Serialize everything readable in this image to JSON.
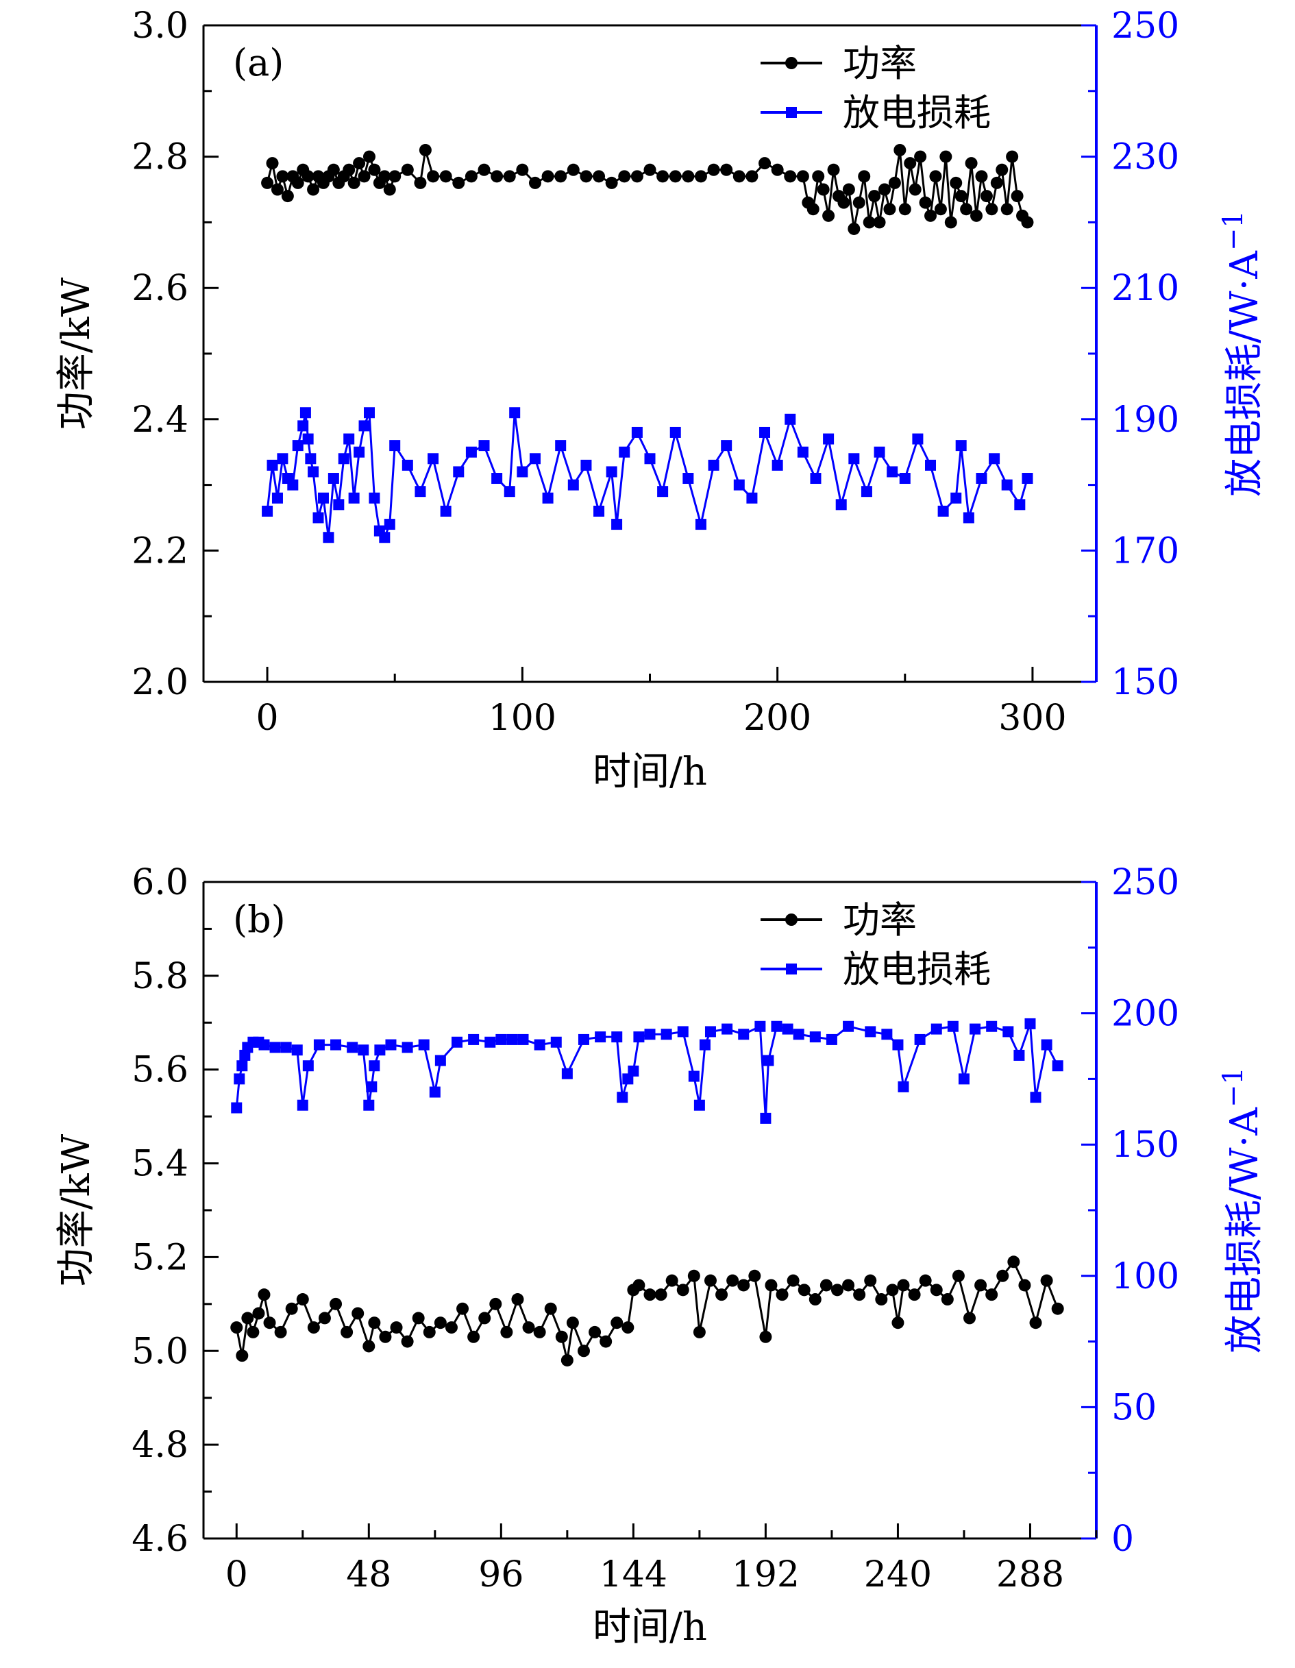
{
  "colors": {
    "power": "#000000",
    "discharge": "#0000ff",
    "axis": "#000000"
  },
  "chart_data": [
    {
      "type": "scatter",
      "panel_label": "(a)",
      "xlabel": "时间/h",
      "ylabel_left": "功率/kW",
      "ylabel_right": "放电损耗/W·A",
      "ylabel_right_sup": "−1",
      "xlim": [
        -25,
        325
      ],
      "ylim_left": [
        2.0,
        3.0
      ],
      "ylim_right": [
        150,
        250
      ],
      "xticks": [
        0,
        100,
        200,
        300
      ],
      "xtick_labels": [
        "0",
        "100",
        "200",
        "300"
      ],
      "yticks_left": [
        2.0,
        2.2,
        2.4,
        2.6,
        2.8,
        3.0
      ],
      "ytick_labels_left": [
        "2.0",
        "2.2",
        "2.4",
        "2.6",
        "2.8",
        "3.0"
      ],
      "yticks_right": [
        150,
        170,
        190,
        210,
        230,
        250
      ],
      "ytick_labels_right": [
        "150",
        "170",
        "190",
        "210",
        "230",
        "250"
      ],
      "legend": {
        "position": "top-right",
        "entries": [
          "功率",
          "放电损耗"
        ]
      },
      "series": [
        {
          "name": "功率",
          "axis": "left",
          "marker": "circle",
          "x": [
            0,
            2,
            4,
            6,
            8,
            10,
            12,
            14,
            16,
            18,
            20,
            22,
            24,
            26,
            28,
            30,
            32,
            34,
            36,
            38,
            40,
            42,
            44,
            46,
            48,
            50,
            55,
            60,
            62,
            65,
            70,
            75,
            80,
            85,
            90,
            95,
            100,
            105,
            110,
            115,
            120,
            125,
            130,
            135,
            140,
            145,
            150,
            155,
            160,
            165,
            170,
            175,
            180,
            185,
            190,
            195,
            200,
            205,
            210,
            212,
            214,
            216,
            218,
            220,
            222,
            224,
            226,
            228,
            230,
            232,
            234,
            236,
            238,
            240,
            242,
            244,
            246,
            248,
            250,
            252,
            254,
            256,
            258,
            260,
            262,
            264,
            266,
            268,
            270,
            272,
            274,
            276,
            278,
            280,
            282,
            284,
            286,
            288,
            290,
            292,
            294,
            296,
            298
          ],
          "y": [
            2.76,
            2.79,
            2.75,
            2.77,
            2.74,
            2.77,
            2.76,
            2.78,
            2.77,
            2.75,
            2.77,
            2.76,
            2.77,
            2.78,
            2.76,
            2.77,
            2.78,
            2.76,
            2.79,
            2.77,
            2.8,
            2.78,
            2.76,
            2.77,
            2.75,
            2.77,
            2.78,
            2.76,
            2.81,
            2.77,
            2.77,
            2.76,
            2.77,
            2.78,
            2.77,
            2.77,
            2.78,
            2.76,
            2.77,
            2.77,
            2.78,
            2.77,
            2.77,
            2.76,
            2.77,
            2.77,
            2.78,
            2.77,
            2.77,
            2.77,
            2.77,
            2.78,
            2.78,
            2.77,
            2.77,
            2.79,
            2.78,
            2.77,
            2.77,
            2.73,
            2.72,
            2.77,
            2.75,
            2.71,
            2.78,
            2.74,
            2.73,
            2.75,
            2.69,
            2.73,
            2.77,
            2.7,
            2.74,
            2.7,
            2.75,
            2.72,
            2.76,
            2.81,
            2.72,
            2.79,
            2.75,
            2.8,
            2.73,
            2.71,
            2.77,
            2.72,
            2.8,
            2.7,
            2.76,
            2.74,
            2.72,
            2.79,
            2.71,
            2.77,
            2.74,
            2.72,
            2.76,
            2.78,
            2.72,
            2.8,
            2.74,
            2.71,
            2.7
          ]
        },
        {
          "name": "放电损耗",
          "axis": "right",
          "marker": "square",
          "x": [
            0,
            2,
            4,
            6,
            8,
            10,
            12,
            14,
            15,
            16,
            17,
            18,
            20,
            22,
            24,
            26,
            28,
            30,
            32,
            34,
            36,
            38,
            40,
            42,
            44,
            46,
            48,
            50,
            55,
            60,
            65,
            70,
            75,
            80,
            85,
            90,
            95,
            97,
            100,
            105,
            110,
            115,
            120,
            125,
            130,
            135,
            137,
            140,
            145,
            150,
            155,
            160,
            165,
            170,
            175,
            180,
            185,
            190,
            195,
            200,
            205,
            210,
            215,
            220,
            225,
            230,
            235,
            240,
            245,
            250,
            255,
            260,
            265,
            270,
            272,
            275,
            280,
            285,
            290,
            295,
            298
          ],
          "y": [
            176,
            183,
            178,
            184,
            181,
            180,
            186,
            189,
            191,
            187,
            184,
            182,
            175,
            178,
            172,
            181,
            177,
            184,
            187,
            178,
            185,
            189,
            191,
            178,
            173,
            172,
            174,
            186,
            183,
            179,
            184,
            176,
            182,
            185,
            186,
            181,
            179,
            191,
            182,
            184,
            178,
            186,
            180,
            183,
            176,
            182,
            174,
            185,
            188,
            184,
            179,
            188,
            181,
            174,
            183,
            186,
            180,
            178,
            188,
            183,
            190,
            185,
            181,
            187,
            177,
            184,
            179,
            185,
            182,
            181,
            187,
            183,
            176,
            178,
            186,
            175,
            181,
            184,
            180,
            177,
            181
          ]
        }
      ]
    },
    {
      "type": "scatter",
      "panel_label": "(b)",
      "xlabel": "时间/h",
      "ylabel_left": "功率/kW",
      "ylabel_right": "放电损耗/W·A",
      "ylabel_right_sup": "−1",
      "xlim": [
        -12,
        312
      ],
      "ylim_left": [
        4.6,
        6.0
      ],
      "ylim_right": [
        0,
        250
      ],
      "xticks": [
        0,
        48,
        96,
        144,
        192,
        240,
        288
      ],
      "xtick_labels": [
        "0",
        "48",
        "96",
        "144",
        "192",
        "240",
        "288"
      ],
      "yticks_left": [
        4.6,
        4.8,
        5.0,
        5.2,
        5.4,
        5.6,
        5.8,
        6.0
      ],
      "ytick_labels_left": [
        "4.6",
        "4.8",
        "5.0",
        "5.2",
        "5.4",
        "5.6",
        "5.8",
        "6.0"
      ],
      "yticks_right": [
        0,
        50,
        100,
        150,
        200,
        250
      ],
      "ytick_labels_right": [
        "0",
        "50",
        "100",
        "150",
        "200",
        "250"
      ],
      "legend": {
        "position": "top-right",
        "entries": [
          "功率",
          "放电损耗"
        ]
      },
      "series": [
        {
          "name": "功率",
          "axis": "left",
          "marker": "circle",
          "x": [
            0,
            2,
            4,
            6,
            8,
            10,
            12,
            16,
            20,
            24,
            28,
            32,
            36,
            40,
            44,
            48,
            50,
            54,
            58,
            62,
            66,
            70,
            74,
            78,
            82,
            86,
            90,
            94,
            98,
            102,
            106,
            110,
            114,
            118,
            120,
            122,
            126,
            130,
            134,
            138,
            142,
            144,
            146,
            150,
            154,
            158,
            162,
            166,
            168,
            172,
            176,
            180,
            184,
            188,
            192,
            194,
            198,
            202,
            206,
            210,
            214,
            218,
            222,
            226,
            230,
            234,
            238,
            240,
            242,
            246,
            250,
            254,
            258,
            262,
            266,
            270,
            274,
            278,
            282,
            286,
            290,
            294,
            298
          ],
          "y": [
            5.05,
            4.99,
            5.07,
            5.04,
            5.08,
            5.12,
            5.06,
            5.04,
            5.09,
            5.11,
            5.05,
            5.07,
            5.1,
            5.04,
            5.08,
            5.01,
            5.06,
            5.03,
            5.05,
            5.02,
            5.07,
            5.04,
            5.06,
            5.05,
            5.09,
            5.03,
            5.07,
            5.1,
            5.04,
            5.11,
            5.05,
            5.04,
            5.09,
            5.03,
            4.98,
            5.06,
            5.0,
            5.04,
            5.02,
            5.06,
            5.05,
            5.13,
            5.14,
            5.12,
            5.12,
            5.15,
            5.13,
            5.16,
            5.04,
            5.15,
            5.12,
            5.15,
            5.14,
            5.16,
            5.03,
            5.14,
            5.12,
            5.15,
            5.13,
            5.11,
            5.14,
            5.13,
            5.14,
            5.12,
            5.15,
            5.11,
            5.13,
            5.06,
            5.14,
            5.12,
            5.15,
            5.13,
            5.11,
            5.16,
            5.07,
            5.14,
            5.12,
            5.16,
            5.19,
            5.14,
            5.06,
            5.15,
            5.09
          ]
        },
        {
          "name": "放电损耗",
          "axis": "right",
          "marker": "square",
          "x": [
            0,
            1,
            2,
            3,
            4,
            6,
            8,
            10,
            14,
            18,
            22,
            24,
            26,
            30,
            36,
            42,
            46,
            48,
            49,
            50,
            52,
            56,
            62,
            68,
            72,
            74,
            80,
            86,
            92,
            96,
            100,
            104,
            110,
            116,
            120,
            126,
            132,
            138,
            140,
            142,
            144,
            146,
            150,
            156,
            162,
            166,
            168,
            170,
            172,
            178,
            184,
            190,
            192,
            193,
            196,
            200,
            204,
            210,
            216,
            222,
            230,
            236,
            240,
            242,
            248,
            254,
            260,
            264,
            268,
            274,
            280,
            284,
            288,
            290,
            294,
            298
          ],
          "y": [
            164,
            175,
            180,
            184,
            187,
            189,
            189,
            188,
            187,
            187,
            186,
            165,
            180,
            188,
            188,
            187,
            186,
            165,
            172,
            180,
            186,
            188,
            187,
            188,
            170,
            182,
            189,
            190,
            189,
            190,
            190,
            190,
            188,
            189,
            177,
            190,
            191,
            191,
            168,
            175,
            178,
            191,
            192,
            192,
            193,
            176,
            165,
            188,
            193,
            194,
            192,
            195,
            160,
            182,
            195,
            194,
            192,
            191,
            190,
            195,
            193,
            192,
            188,
            172,
            190,
            194,
            195,
            175,
            194,
            195,
            193,
            184,
            196,
            168,
            188,
            180
          ]
        }
      ]
    }
  ]
}
